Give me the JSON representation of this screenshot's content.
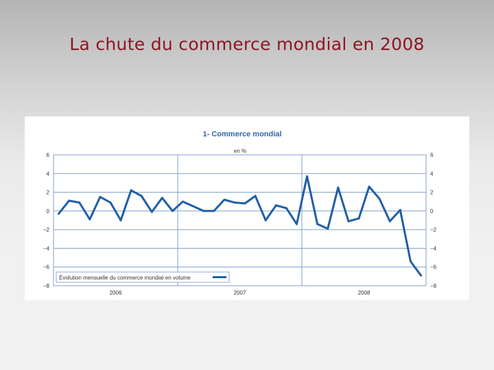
{
  "slide": {
    "title": "La chute du commerce mondial en 2008"
  },
  "chart_data": {
    "type": "line",
    "title": "1- Commerce mondial",
    "unit": "en %",
    "ylim": [
      -8,
      6
    ],
    "yticks": [
      6,
      4,
      2,
      0,
      -2,
      -4,
      -6,
      -8
    ],
    "ytick_labels": [
      "6",
      "4",
      "2",
      "0",
      "−2",
      "−4",
      "−6",
      "−8"
    ],
    "year_labels": [
      "2006",
      "2007",
      "2008"
    ],
    "grid": true,
    "legend_position": "bottom-left",
    "colors": {
      "series": "#1f5fa6",
      "grid": "#7f9fc7",
      "title": "#2e6aad"
    },
    "series": [
      {
        "name": "Évolution mensuelle du commerce mondial en volume",
        "x": [
          "2006-01",
          "2006-02",
          "2006-03",
          "2006-04",
          "2006-05",
          "2006-06",
          "2006-07",
          "2006-08",
          "2006-09",
          "2006-10",
          "2006-11",
          "2006-12",
          "2007-01",
          "2007-02",
          "2007-03",
          "2007-04",
          "2007-05",
          "2007-06",
          "2007-07",
          "2007-08",
          "2007-09",
          "2007-10",
          "2007-11",
          "2007-12",
          "2008-01",
          "2008-02",
          "2008-03",
          "2008-04",
          "2008-05",
          "2008-06",
          "2008-07",
          "2008-08",
          "2008-09",
          "2008-10",
          "2008-11",
          "2008-12"
        ],
        "values": [
          -0.3,
          1.1,
          0.9,
          -0.9,
          1.5,
          0.9,
          -1.0,
          2.2,
          1.6,
          -0.1,
          1.4,
          0.0,
          1.0,
          0.5,
          0.0,
          0.0,
          1.2,
          0.9,
          0.8,
          1.6,
          -1.0,
          0.6,
          0.3,
          -1.4,
          3.7,
          -1.4,
          -1.9,
          2.5,
          -1.1,
          -0.8,
          2.6,
          1.3,
          -1.1,
          0.1,
          -5.4,
          -6.9
        ]
      }
    ]
  }
}
